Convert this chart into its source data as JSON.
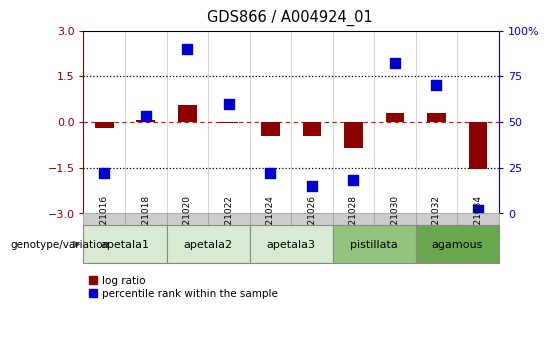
{
  "title": "GDS866 / A004924_01",
  "samples": [
    "GSM21016",
    "GSM21018",
    "GSM21020",
    "GSM21022",
    "GSM21024",
    "GSM21026",
    "GSM21028",
    "GSM21030",
    "GSM21032",
    "GSM21034"
  ],
  "log_ratio": [
    -0.2,
    0.07,
    0.55,
    -0.05,
    -0.45,
    -0.45,
    -0.85,
    0.28,
    0.28,
    -1.55
  ],
  "percentile_rank": [
    22,
    53,
    90,
    60,
    22,
    15,
    18,
    82,
    70,
    2
  ],
  "groups": [
    {
      "label": "apetala1",
      "indices": [
        0,
        1
      ],
      "color": "#d9ead3"
    },
    {
      "label": "apetala2",
      "indices": [
        2,
        3
      ],
      "color": "#d9ead3"
    },
    {
      "label": "apetala3",
      "indices": [
        4,
        5
      ],
      "color": "#d9ead3"
    },
    {
      "label": "pistillata",
      "indices": [
        6,
        7
      ],
      "color": "#93c47d"
    },
    {
      "label": "agamous",
      "indices": [
        8,
        9
      ],
      "color": "#6aa84f"
    }
  ],
  "ylim_left": [
    -3,
    3
  ],
  "ylim_right": [
    0,
    100
  ],
  "yticks_left": [
    -3,
    -1.5,
    0,
    1.5,
    3
  ],
  "yticks_right": [
    0,
    25,
    50,
    75,
    100
  ],
  "red_color": "#8b0000",
  "blue_color": "#0000cc",
  "bar_width": 0.45,
  "dot_size": 55,
  "legend_red": "log ratio",
  "legend_blue": "percentile rank within the sample",
  "sample_bg_color": "#cccccc",
  "sample_border_color": "#999999",
  "group_border_color": "#888888",
  "genotype_label": "genotype/variation"
}
